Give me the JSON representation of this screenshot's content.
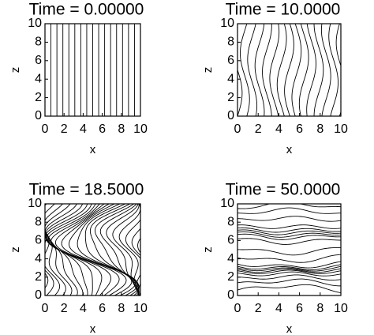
{
  "chart_data": [
    {
      "type": "contour",
      "title": "Time = 0.00000",
      "xlabel": "x",
      "ylabel": "z",
      "xlim": [
        0,
        10
      ],
      "ylim": [
        0,
        10
      ],
      "xticks": [
        0,
        2,
        4,
        6,
        8,
        10
      ],
      "yticks": [
        0,
        2,
        4,
        6,
        8,
        10
      ]
    },
    {
      "type": "contour",
      "title": "Time = 10.0000",
      "xlabel": "x",
      "ylabel": "z",
      "xlim": [
        0,
        10
      ],
      "ylim": [
        0,
        10
      ],
      "xticks": [
        0,
        2,
        4,
        6,
        8,
        10
      ],
      "yticks": [
        0,
        2,
        4,
        6,
        8,
        10
      ]
    },
    {
      "type": "contour",
      "title": "Time = 18.5000",
      "xlabel": "x",
      "ylabel": "z",
      "xlim": [
        0,
        10
      ],
      "ylim": [
        0,
        10
      ],
      "xticks": [
        0,
        2,
        4,
        6,
        8,
        10
      ],
      "yticks": [
        0,
        2,
        4,
        6,
        8,
        10
      ]
    },
    {
      "type": "contour",
      "title": "Time = 50.0000",
      "xlabel": "x",
      "ylabel": "z",
      "xlim": [
        0,
        10
      ],
      "ylim": [
        0,
        10
      ],
      "xticks": [
        0,
        2,
        4,
        6,
        8,
        10
      ],
      "yticks": [
        0,
        2,
        4,
        6,
        8,
        10
      ]
    }
  ]
}
